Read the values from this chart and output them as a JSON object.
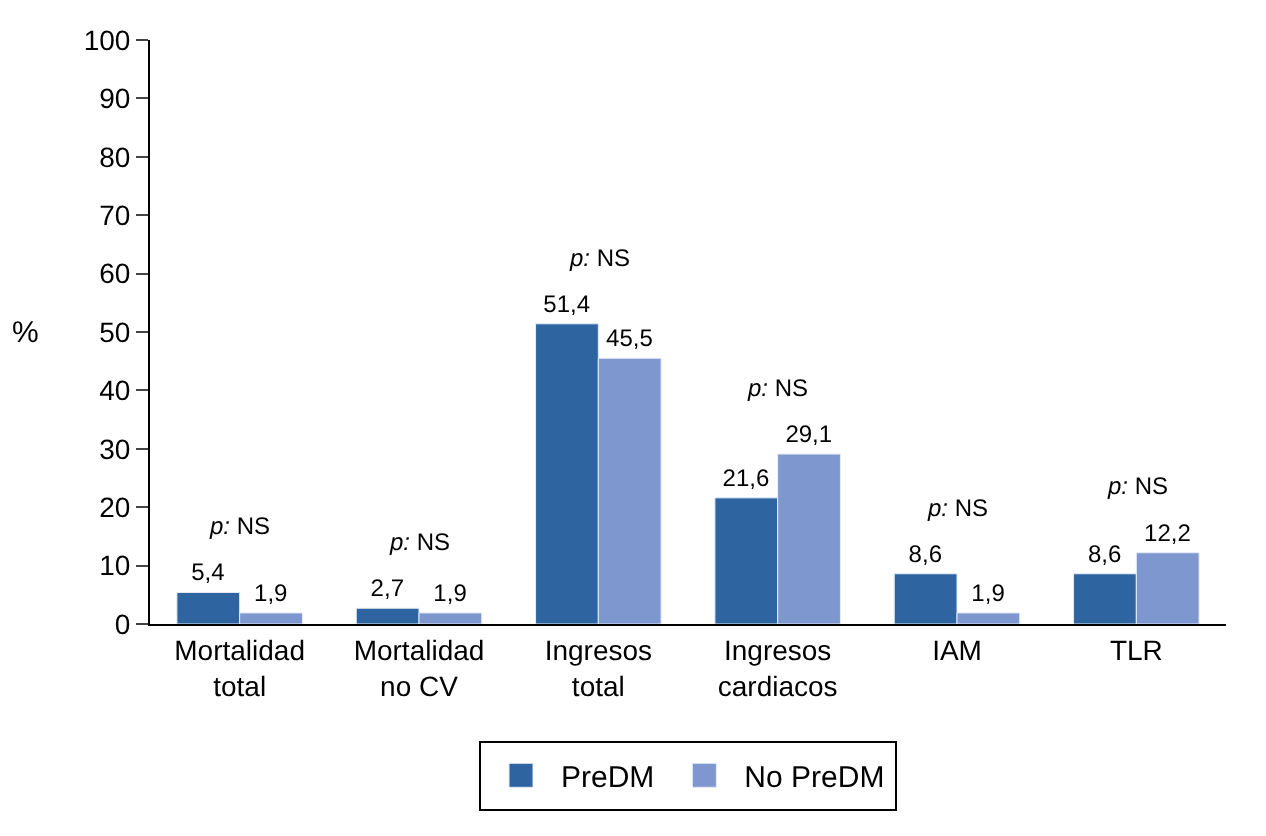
{
  "chart_data": {
    "type": "bar",
    "ylabel": "%",
    "categories": [
      "Mortalidad\ntotal",
      "Mortalidad\nno CV",
      "Ingresos\ntotal",
      "Ingresos\ncardiacos",
      "IAM",
      "TLR"
    ],
    "series": [
      {
        "name": "PreDM",
        "color": "#2e64a0",
        "values": [
          5.4,
          2.7,
          51.4,
          21.6,
          8.6,
          8.6
        ],
        "value_labels": [
          "5,4",
          "2,7",
          "51,4",
          "21,6",
          "8,6",
          "8,6"
        ]
      },
      {
        "name": "No PreDM",
        "color": "#7f97cf",
        "values": [
          1.9,
          1.9,
          45.5,
          29.1,
          1.9,
          12.2
        ],
        "value_labels": [
          "1,9",
          "1,9",
          "45,5",
          "29,1",
          "1,9",
          "12,2"
        ]
      }
    ],
    "annotations": [
      "p: NS",
      "p: NS",
      "p: NS",
      "p: NS",
      "p: NS",
      "p: NS"
    ],
    "ylim": [
      0,
      100
    ],
    "yticks": [
      0,
      10,
      20,
      30,
      40,
      50,
      60,
      70,
      80,
      90,
      100
    ],
    "legend": "bottom"
  }
}
